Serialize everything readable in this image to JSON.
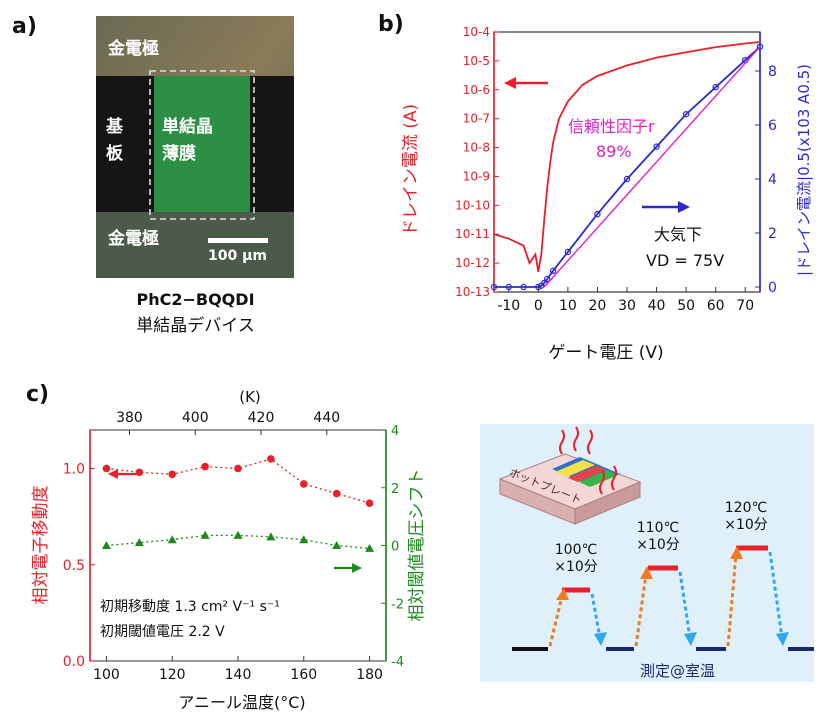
{
  "panels": {
    "a": "a)",
    "b": "b)",
    "c": "c)"
  },
  "panel_a": {
    "gold_top": "金電極",
    "substrate": "基板",
    "single_crystal": "単結晶薄膜",
    "gold_bottom": "金電極",
    "scale_bar": "100 μm",
    "compound": "PhC2−BQQDI",
    "device": "単結晶デバイス"
  },
  "panel_b": {
    "y_left_label": "ドレイン電流 (A)",
    "y_right_label": "|ドレイン電流|0.5(x103 A0.5)",
    "x_label": "ゲート電圧 (V)",
    "reliability_label": "信頼性因子r",
    "reliability_value": "89%",
    "condition": "大気下",
    "vd": "VD = 75V",
    "x_ticks": [
      "-10",
      "0",
      "10",
      "20",
      "30",
      "40",
      "50",
      "60",
      "70"
    ],
    "y_left_ticks": [
      "10-13",
      "10-12",
      "10-11",
      "10-10",
      "10-9",
      "10-8",
      "10-7",
      "10-6",
      "10-5",
      "10-4"
    ],
    "y_right_ticks": [
      "0",
      "2",
      "4",
      "6",
      "8"
    ]
  },
  "panel_c": {
    "top_axis_label": "(K)",
    "x_label": "アニール温度(°C)",
    "y_left_label": "相対電子移動度",
    "y_right_label": "相対閾値電圧シフト",
    "note1": "初期移動度 1.3 cm² V⁻¹ s⁻¹",
    "note2": "初期閾値電圧 2.2 V",
    "x_ticks": [
      "100",
      "120",
      "140",
      "160",
      "180"
    ],
    "top_ticks": [
      "380",
      "400",
      "420",
      "440"
    ],
    "y_left_ticks": [
      "0.0",
      "0.5",
      "1.0"
    ],
    "y_right_ticks": [
      "-4",
      "-2",
      "0",
      "2",
      "4"
    ]
  },
  "schematic": {
    "hotplate": "ホットプレート",
    "step1": "100℃ ×10分",
    "step2": "110℃ ×10分",
    "step3": "120℃ ×10分",
    "bottom": "測定@室温"
  },
  "colors": {
    "red": "#e8202a",
    "blue": "#2a2ad0",
    "green": "#1e8a1e",
    "magenta": "#e020c8"
  },
  "chart_data": [
    {
      "type": "line",
      "panel": "b",
      "xlabel": "ゲート電圧 (V)",
      "xlim": [
        -15,
        75
      ],
      "series": [
        {
          "axis": "left-log",
          "color": "#e8202a",
          "x": [
            -15,
            -10,
            -5,
            -3,
            -1,
            0,
            1,
            2,
            3,
            4,
            5,
            7,
            10,
            15,
            20,
            30,
            40,
            50,
            60,
            70,
            75
          ],
          "y": [
            1e-11,
            7e-12,
            4e-12,
            1e-12,
            2e-12,
            5e-13,
            2e-12,
            3e-11,
            4e-10,
            3e-09,
            1.5e-08,
            1e-07,
            4e-07,
            1.5e-06,
            3e-06,
            7e-06,
            1.3e-05,
            2e-05,
            3e-05,
            4e-05,
            4.5e-05
          ]
        },
        {
          "axis": "right",
          "color": "#2a2ad0",
          "x": [
            -15,
            -10,
            -5,
            0,
            1,
            2,
            3,
            5,
            10,
            20,
            30,
            40,
            50,
            60,
            70,
            75
          ],
          "y": [
            0,
            0,
            0,
            0,
            0.05,
            0.15,
            0.3,
            0.6,
            1.3,
            2.7,
            4.0,
            5.2,
            6.4,
            7.4,
            8.4,
            8.9
          ]
        },
        {
          "axis": "right",
          "color": "#e020c8",
          "name": "fit",
          "x": [
            2,
            75
          ],
          "y": [
            0,
            8.9
          ]
        }
      ]
    },
    {
      "type": "line",
      "panel": "c",
      "xlabel": "アニール温度(°C)",
      "xlim": [
        95,
        185
      ],
      "series": [
        {
          "axis": "left",
          "color": "#e8202a",
          "x": [
            100,
            110,
            120,
            130,
            140,
            150,
            160,
            170,
            180
          ],
          "y": [
            1.0,
            0.98,
            0.97,
            1.01,
            1.0,
            1.05,
            0.92,
            0.87,
            0.82
          ]
        },
        {
          "axis": "right",
          "color": "#1e8a1e",
          "x": [
            100,
            110,
            120,
            130,
            140,
            150,
            160,
            170,
            180
          ],
          "y": [
            0.0,
            0.1,
            0.2,
            0.35,
            0.35,
            0.3,
            0.2,
            0.0,
            -0.1
          ]
        }
      ],
      "ylim_left": [
        0.0,
        1.2
      ],
      "ylim_right": [
        -4,
        4
      ]
    }
  ]
}
